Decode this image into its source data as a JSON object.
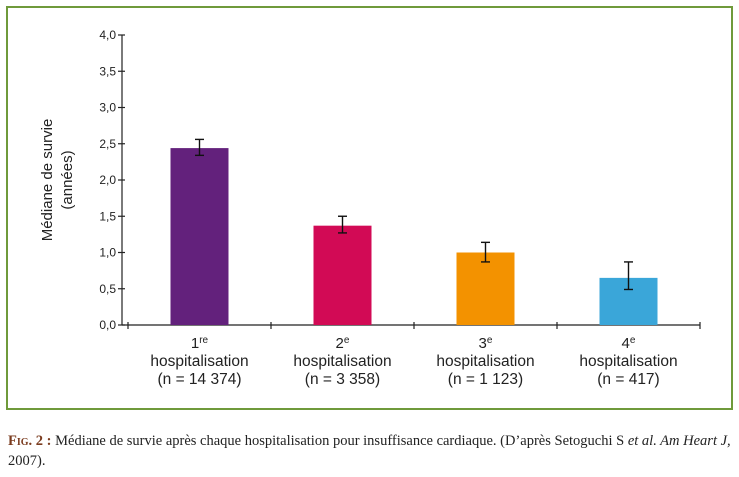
{
  "chart_data": {
    "type": "bar",
    "ylabel_line1": "Médiane de survie",
    "ylabel_line2": "(années)",
    "ylim": [
      0,
      4.0
    ],
    "yticks": [
      "0,0",
      "0,5",
      "1,0",
      "1,5",
      "2,0",
      "2,5",
      "3,0",
      "3,5",
      "4,0"
    ],
    "categories": [
      {
        "num": "1",
        "sup": "re",
        "label": "hospitalisation",
        "n": "(n = 14 374)"
      },
      {
        "num": "2",
        "sup": "e",
        "label": "hospitalisation",
        "n": "(n = 3 358)"
      },
      {
        "num": "3",
        "sup": "e",
        "label": "hospitalisation",
        "n": "(n = 1 123)"
      },
      {
        "num": "4",
        "sup": "e",
        "label": "hospitalisation",
        "n": "(n = 417)"
      }
    ],
    "values": [
      2.44,
      1.37,
      1.0,
      0.65
    ],
    "error_low": [
      2.34,
      1.27,
      0.87,
      0.49
    ],
    "error_high": [
      2.56,
      1.5,
      1.14,
      0.87
    ],
    "colors": [
      "#63217c",
      "#d20a55",
      "#f39200",
      "#3aa6d9"
    ],
    "grid": false,
    "legend": "none"
  },
  "caption": {
    "fig_label": "Fig. 2 :",
    "text1": " Médiane de survie après chaque hospitalisation pour insuffisance cardiaque. (D’après Setoguchi S ",
    "italic1": "et al. Am Heart J,",
    "text2": " 2007)."
  }
}
